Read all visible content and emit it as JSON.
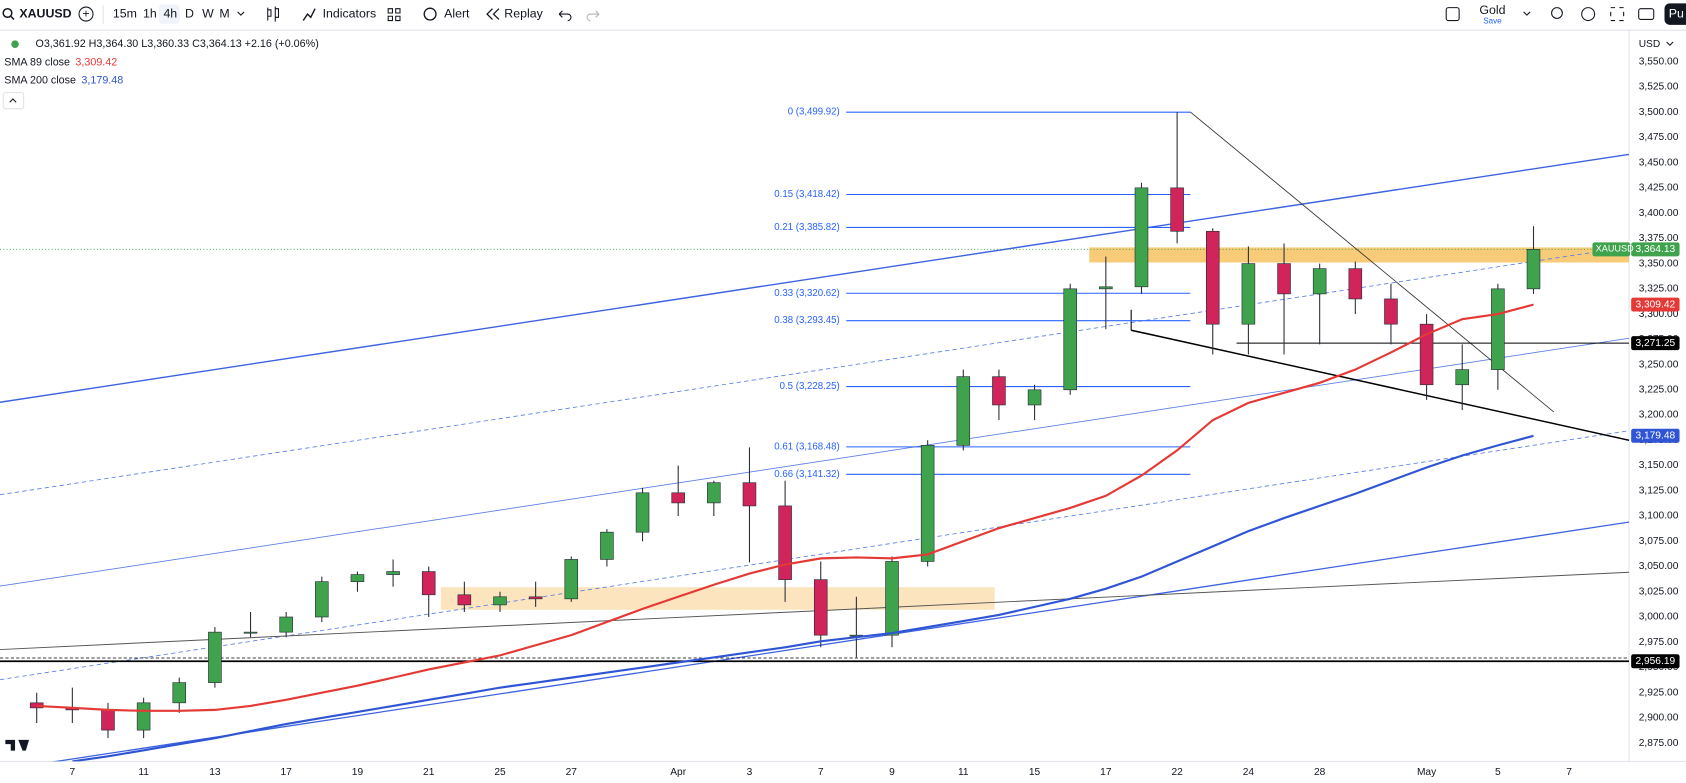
{
  "toolbar": {
    "symbol": "XAUUSD",
    "intervals": [
      "15m",
      "1h",
      "4h",
      "D",
      "W",
      "M"
    ],
    "buttons": [
      "Indicators",
      "Alert",
      "Replay"
    ],
    "layout_name": "Gold",
    "save": "Save",
    "publish": "Pu"
  },
  "legend": {
    "ohlc": "O3,361.92 H3,364.30 L3,360.33 C3,364.13 +2.16 (+0.06%)"
  },
  "chart_data": {
    "type": "candlestick",
    "currency": "USD",
    "up_color": "#3fa34d",
    "down_color": "#d0245a",
    "open": [
      2915,
      2910,
      2908,
      2888,
      2915,
      2935,
      2985,
      2985,
      3000,
      3035,
      3042,
      3045,
      3022,
      3012,
      3020,
      3018,
      3057,
      3084,
      3123,
      3113,
      3133,
      3110,
      3037,
      2982,
      2982,
      3055,
      3170,
      3238,
      3210,
      3225,
      3325,
      3327,
      3425,
      3382,
      3290,
      3350,
      3320,
      3345,
      3315,
      3290,
      3230,
      3245,
      3325
    ],
    "high": [
      2925,
      2930,
      2915,
      2920,
      2940,
      2990,
      3005,
      3005,
      3040,
      3045,
      3057,
      3050,
      3035,
      3025,
      3035,
      3060,
      3087,
      3128,
      3150,
      3135,
      3168,
      3135,
      3055,
      3020,
      3060,
      3175,
      3245,
      3245,
      3230,
      3330,
      3357,
      3430,
      3500,
      3385,
      3367,
      3370,
      3350,
      3352,
      3330,
      3300,
      3270,
      3330,
      3387
    ],
    "low": [
      2895,
      2895,
      2880,
      2880,
      2905,
      2930,
      2980,
      2980,
      2995,
      3025,
      3030,
      3000,
      3005,
      3005,
      3010,
      3015,
      3050,
      3075,
      3100,
      3100,
      3054,
      3015,
      2970,
      2960,
      2970,
      3050,
      3165,
      3195,
      3195,
      3220,
      3285,
      3320,
      3370,
      3260,
      3260,
      3260,
      3270,
      3300,
      3270,
      3215,
      3205,
      3225,
      3320
    ],
    "close": [
      2910,
      2908,
      2888,
      2915,
      2935,
      2985,
      2985,
      3000,
      3035,
      3042,
      3045,
      3022,
      3012,
      3020,
      3018,
      3057,
      3084,
      3123,
      3113,
      3133,
      3110,
      3037,
      2982,
      2982,
      3055,
      3170,
      3238,
      3210,
      3225,
      3325,
      3327,
      3425,
      3382,
      3290,
      3350,
      3320,
      3345,
      3315,
      3290,
      3230,
      3245,
      3325,
      3364.13
    ],
    "lines": [
      {
        "name": "SMA 200 close",
        "color": "#2f55d4",
        "value_label": "3,179.48",
        "values": [
          null,
          2857,
          2862,
          2868,
          2874,
          2880,
          2887,
          2894,
          2900,
          2906,
          2912,
          2918,
          2924,
          2930,
          2935,
          2940,
          2945,
          2950,
          2955,
          2960,
          2965,
          2970,
          2976,
          2980,
          2984,
          2990,
          2996,
          3002,
          3010,
          3018,
          3028,
          3040,
          3055,
          3070,
          3085,
          3098,
          3110,
          3122,
          3135,
          3148,
          3160,
          3170,
          3179.48
        ]
      },
      {
        "name": "SMA 89 close",
        "color": "#e53935",
        "value_label": "3,309.42",
        "values": [
          2912,
          2910,
          2908,
          2907,
          2907,
          2908,
          2912,
          2918,
          2925,
          2932,
          2940,
          2948,
          2955,
          2962,
          2972,
          2982,
          2995,
          3008,
          3020,
          3032,
          3043,
          3052,
          3058,
          3059,
          3058,
          3062,
          3075,
          3088,
          3098,
          3108,
          3120,
          3140,
          3165,
          3195,
          3212,
          3222,
          3232,
          3245,
          3262,
          3280,
          3295,
          3300,
          3309.42
        ]
      }
    ],
    "fib_levels": [
      {
        "label": "0 (3,499.92)",
        "value": 3499.92
      },
      {
        "label": "0.15 (3,418.42)",
        "value": 3418.42
      },
      {
        "label": "0.21 (3,385.82)",
        "value": 3385.82
      },
      {
        "label": "0.33 (3,320.62)",
        "value": 3320.62
      },
      {
        "label": "0.38 (3,293.45)",
        "value": 3293.45
      },
      {
        "label": "0.5 (3,228.25)",
        "value": 3228.25
      },
      {
        "label": "0.61 (3,168.48)",
        "value": 3168.48
      },
      {
        "label": "0.66 (3,141.32)",
        "value": 3141.32
      }
    ],
    "price_lines": [
      {
        "name": "XAUUSD",
        "label": "3,364.13",
        "value": 3364.13,
        "color": "#3fa34d"
      },
      {
        "label": "3,271.25",
        "value": 3271.25,
        "color": "#000000"
      },
      {
        "label": "2,956.19",
        "value": 2956.19,
        "color": "#000000"
      }
    ],
    "xlim": [
      -1.03,
      44.68
    ],
    "ylim": [
      2857,
      3579
    ],
    "grid": false,
    "xticks": [
      {
        "value": 1,
        "label": "7"
      },
      {
        "value": 3,
        "label": "11"
      },
      {
        "value": 5,
        "label": "13"
      },
      {
        "value": 7,
        "label": "17"
      },
      {
        "value": 9,
        "label": "19"
      },
      {
        "value": 11,
        "label": "21"
      },
      {
        "value": 13,
        "label": "25"
      },
      {
        "value": 15,
        "label": "27"
      },
      {
        "value": 18,
        "label": "Apr"
      },
      {
        "value": 20,
        "label": "3"
      },
      {
        "value": 22,
        "label": "7"
      },
      {
        "value": 24,
        "label": "9"
      },
      {
        "value": 26,
        "label": "11"
      },
      {
        "value": 28,
        "label": "15"
      },
      {
        "value": 30,
        "label": "17"
      },
      {
        "value": 32,
        "label": "22"
      },
      {
        "value": 34,
        "label": "24"
      },
      {
        "value": 36,
        "label": "28"
      },
      {
        "value": 39,
        "label": "May"
      },
      {
        "value": 41,
        "label": "5"
      },
      {
        "value": 43,
        "label": "7"
      }
    ],
    "yticks": [
      {
        "value": 2875,
        "label": "2,875.00"
      },
      {
        "value": 2900,
        "label": "2,900.00"
      },
      {
        "value": 2925,
        "label": "2,925.00"
      },
      {
        "value": 2950,
        "label": "2,950.00"
      },
      {
        "value": 2975,
        "label": "2,975.00"
      },
      {
        "value": 3000,
        "label": "3,000.00"
      },
      {
        "value": 3025,
        "label": "3,025.00"
      },
      {
        "value": 3050,
        "label": "3,050.00"
      },
      {
        "value": 3075,
        "label": "3,075.00"
      },
      {
        "value": 3100,
        "label": "3,100.00"
      },
      {
        "value": 3125,
        "label": "3,125.00"
      },
      {
        "value": 3150,
        "label": "3,150.00"
      },
      {
        "value": 3175,
        "label": "3,175.00"
      },
      {
        "value": 3200,
        "label": "3,200.00"
      },
      {
        "value": 3225,
        "label": "3,225.00"
      },
      {
        "value": 3250,
        "label": "3,250.00"
      },
      {
        "value": 3275,
        "label": "3,275.00"
      },
      {
        "value": 3300,
        "label": "3,300.00"
      },
      {
        "value": 3325,
        "label": "3,325.00"
      },
      {
        "value": 3350,
        "label": "3,350.00"
      },
      {
        "value": 3375,
        "label": "3,375.00"
      },
      {
        "value": 3400,
        "label": "3,400.00"
      },
      {
        "value": 3425,
        "label": "3,425.00"
      },
      {
        "value": 3450,
        "label": "3,450.00"
      },
      {
        "value": 3475,
        "label": "3,475.00"
      },
      {
        "value": 3500,
        "label": "3,500.00"
      },
      {
        "value": 3525,
        "label": "3,525.00"
      },
      {
        "value": 3550,
        "label": "3,550.00"
      }
    ]
  }
}
